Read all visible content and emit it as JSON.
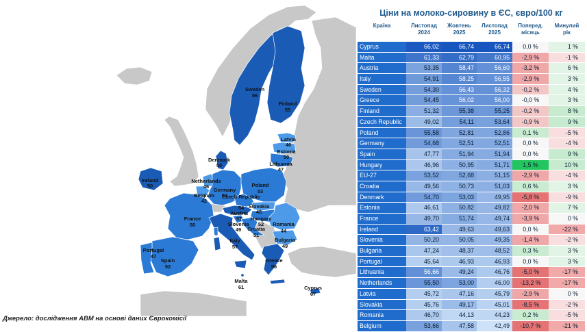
{
  "title": "Ціни на молоко-сировину в ЄС, євро/100 кг",
  "source": "Джерело: дослідження АВМ на основі даних Єврокомісії",
  "columns": {
    "country": "Країна",
    "v1": [
      "Листопад",
      "2024"
    ],
    "v2": [
      "Жовтень",
      "2025"
    ],
    "v3": [
      "Листопад",
      "2025"
    ],
    "m": [
      "Поперед.",
      "місяць"
    ],
    "y": [
      "Минулий",
      "рік"
    ]
  },
  "rows": [
    {
      "country": "Cyprus",
      "v1": "66,02",
      "v2": "66,74",
      "v3": "66,74",
      "m": "0,0 %",
      "y": "1 %"
    },
    {
      "country": "Malta",
      "v1": "61,33",
      "v2": "62,79",
      "v3": "60,95",
      "m": "-2,9 %",
      "y": "-1 %"
    },
    {
      "country": "Austria",
      "v1": "53,35",
      "v2": "58,47",
      "v3": "56,60",
      "m": "-3,2 %",
      "y": "6 %"
    },
    {
      "country": "Italy",
      "v1": "54,91",
      "v2": "58,25",
      "v3": "56,55",
      "m": "-2,9 %",
      "y": "3 %"
    },
    {
      "country": "Sweden",
      "v1": "54,30",
      "v2": "56,43",
      "v3": "56,32",
      "m": "-0,2 %",
      "y": "4 %"
    },
    {
      "country": "Greece",
      "v1": "54,45",
      "v2": "56,02",
      "v3": "56,00",
      "m": "-0,0 %",
      "y": "3 %"
    },
    {
      "country": "Finland",
      "v1": "51,32",
      "v2": "55,38",
      "v3": "55,25",
      "m": "-0,2 %",
      "y": "8 %"
    },
    {
      "country": "Czech Republic",
      "v1": "49,02",
      "v2": "54,11",
      "v3": "53,64",
      "m": "-0,9 %",
      "y": "9 %"
    },
    {
      "country": "Poland",
      "v1": "55,58",
      "v2": "52,81",
      "v3": "52,86",
      "m": "0,1 %",
      "y": "-5 %"
    },
    {
      "country": "Germany",
      "v1": "54,68",
      "v2": "52,51",
      "v3": "52,51",
      "m": "0,0 %",
      "y": "-4 %"
    },
    {
      "country": "Spain",
      "v1": "47,77",
      "v2": "51,94",
      "v3": "51,94",
      "m": "0,0 %",
      "y": "9 %"
    },
    {
      "country": "Hungary",
      "v1": "46,96",
      "v2": "50,95",
      "v3": "51,71",
      "m": "1,5 %",
      "y": "10 %"
    },
    {
      "country": "EU-27",
      "v1": "53,52",
      "v2": "52,68",
      "v3": "51,15",
      "m": "-2,9 %",
      "y": "-4 %"
    },
    {
      "country": "Croatia",
      "v1": "49,56",
      "v2": "50,73",
      "v3": "51,03",
      "m": "0,6 %",
      "y": "3 %"
    },
    {
      "country": "Denmark",
      "v1": "54,70",
      "v2": "53,03",
      "v3": "49,95",
      "m": "-5,8 %",
      "y": "-9 %"
    },
    {
      "country": "Estonia",
      "v1": "46,61",
      "v2": "50,82",
      "v3": "49,82",
      "m": "-2,0 %",
      "y": "7 %"
    },
    {
      "country": "France",
      "v1": "49,70",
      "v2": "51,74",
      "v3": "49,74",
      "m": "-3,9 %",
      "y": "0 %"
    },
    {
      "country": "Ireland",
      "v1": "63,42",
      "v2": "49,63",
      "v3": "49,63",
      "m": "0,0 %",
      "y": "-22 %"
    },
    {
      "country": "Slovenia",
      "v1": "50,20",
      "v2": "50,05",
      "v3": "49,35",
      "m": "-1,4 %",
      "y": "-2 %"
    },
    {
      "country": "Bulgaria",
      "v1": "47,24",
      "v2": "48,37",
      "v3": "48,52",
      "m": "0,3 %",
      "y": "3 %"
    },
    {
      "country": "Portugal",
      "v1": "45,64",
      "v2": "46,93",
      "v3": "46,93",
      "m": "0,0 %",
      "y": "3 %"
    },
    {
      "country": "Lithuania",
      "v1": "56,66",
      "v2": "49,24",
      "v3": "46,76",
      "m": "-5,0 %",
      "y": "-17 %"
    },
    {
      "country": "Netherlands",
      "v1": "55,50",
      "v2": "53,00",
      "v3": "46,00",
      "m": "-13,2 %",
      "y": "-17 %"
    },
    {
      "country": "Latvia",
      "v1": "45,72",
      "v2": "47,16",
      "v3": "45,79",
      "m": "-2,9 %",
      "y": "0 %"
    },
    {
      "country": "Slovakia",
      "v1": "45,76",
      "v2": "49,17",
      "v3": "45,01",
      "m": "-8,5 %",
      "y": "-2 %"
    },
    {
      "country": "Romania",
      "v1": "46,70",
      "v2": "44,13",
      "v3": "44,23",
      "m": "0,2 %",
      "y": "-5 %"
    },
    {
      "country": "Belgium",
      "v1": "53,66",
      "v2": "47,58",
      "v3": "42,49",
      "m": "-10,7 %",
      "y": "-21 %"
    }
  ],
  "map_labels": [
    {
      "name": "Sweden",
      "value": "56"
    },
    {
      "name": "Finland",
      "value": "55"
    },
    {
      "name": "Latvia",
      "value": "46"
    },
    {
      "name": "Estonia",
      "value": "50"
    },
    {
      "name": "Lithuania",
      "value": "47"
    },
    {
      "name": "Denmark",
      "value": "50"
    },
    {
      "name": "Ireland",
      "value": "50"
    },
    {
      "name": "Netherlands",
      "value": "46"
    },
    {
      "name": "Germany",
      "value": "53"
    },
    {
      "name": "Poland",
      "value": "53"
    },
    {
      "name": "Belgium",
      "value": "42"
    },
    {
      "name": "Czech Republic",
      "value": "54"
    },
    {
      "name": "Slovakia",
      "value": "45"
    },
    {
      "name": "Austria",
      "value": "57"
    },
    {
      "name": "Hungary",
      "value": "52"
    },
    {
      "name": "France",
      "value": "50"
    },
    {
      "name": "Slovenia",
      "value": "49"
    },
    {
      "name": "Croatia",
      "value": "51"
    },
    {
      "name": "Romania",
      "value": "44"
    },
    {
      "name": "Bulgaria",
      "value": "49"
    },
    {
      "name": "Italy",
      "value": "57"
    },
    {
      "name": "Portugal",
      "value": "47"
    },
    {
      "name": "Spain",
      "value": "52"
    },
    {
      "name": "Greece",
      "value": "56"
    },
    {
      "name": "Malta",
      "value": "61"
    },
    {
      "name": "Cyprus",
      "value": "67"
    }
  ],
  "colors": {
    "dark": "#1a5bb5",
    "mid": "#2a7ad6",
    "light": "#4c9ae8",
    "nonEU": "#c8c8c8",
    "red_strong": "#e57373",
    "red_light": "#f4c7c7",
    "green_strong": "#22c55e",
    "green_light": "#c9ecd0"
  }
}
